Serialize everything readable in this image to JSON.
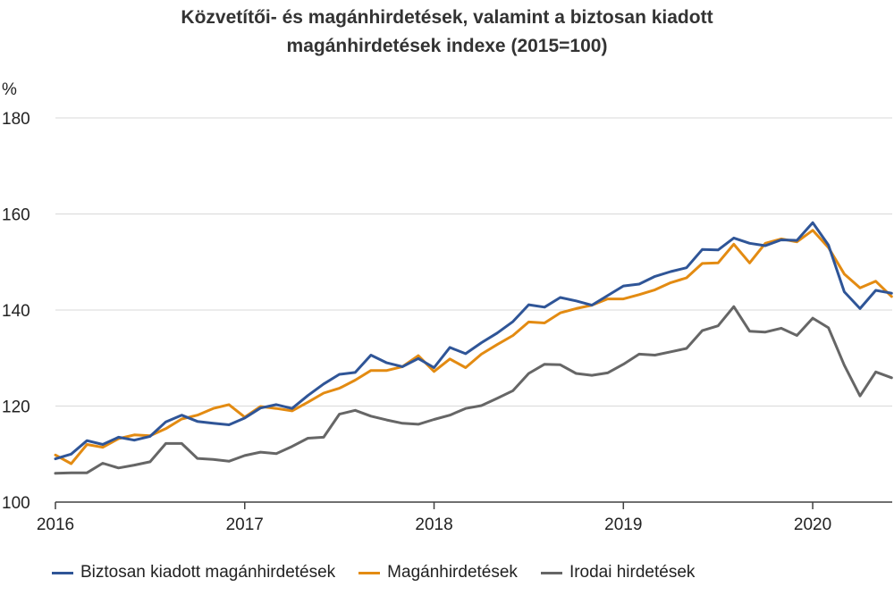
{
  "chart_data": {
    "type": "line",
    "title": [
      "Közvetítői- és magánhirdetések, valamint a biztosan kiadott",
      "magánhirdetések indexe (2015=100)"
    ],
    "ylabel": "%",
    "ylim": [
      100,
      180
    ],
    "yticks": [
      100,
      120,
      140,
      160,
      180
    ],
    "xlim": [
      2016.0,
      2020.42
    ],
    "xticks": [
      2016,
      2017,
      2018,
      2019,
      2020
    ],
    "xtick_labels": [
      "2016",
      "2017",
      "2018",
      "2019",
      "2020"
    ],
    "grid": "horizontal",
    "legend_position": "bottom",
    "months_start": "2016-01",
    "series": [
      {
        "name": "Biztosan kiadott magánhirdetések",
        "color": "#2f5597",
        "values": [
          109,
          110,
          112.8,
          112,
          113.5,
          112.9,
          113.7,
          116.7,
          118.1,
          116.8,
          116.4,
          116.1,
          117.5,
          119.6,
          120.3,
          119.5,
          122.2,
          124.6,
          126.6,
          127,
          130.6,
          129,
          128.2,
          129.9,
          128,
          132.2,
          130.9,
          133.2,
          135.2,
          137.6,
          141.1,
          140.6,
          142.6,
          141.9,
          141,
          143,
          145,
          145.4,
          147,
          148,
          148.8,
          152.6,
          152.5,
          155,
          153.9,
          153.4,
          154.6,
          154.5,
          158.2,
          153.5,
          143.8,
          140.3,
          144.1,
          143.5
        ]
      },
      {
        "name": "Magánhirdetések",
        "color": "#e38b12",
        "values": [
          109.8,
          108,
          112,
          111.4,
          113.2,
          114,
          113.8,
          115.3,
          117.3,
          118.1,
          119.5,
          120.3,
          117.7,
          119.9,
          119.5,
          119,
          120.8,
          122.7,
          123.7,
          125.4,
          127.4,
          127.4,
          128.2,
          130.5,
          127.2,
          129.8,
          128,
          130.8,
          132.8,
          134.7,
          137.5,
          137.3,
          139.4,
          140.3,
          141,
          142.3,
          142.3,
          143.2,
          144.2,
          145.7,
          146.7,
          149.7,
          149.8,
          153.7,
          149.8,
          153.9,
          154.8,
          154.2,
          156.6,
          153,
          147.5,
          144.6,
          146,
          142.8
        ]
      },
      {
        "name": "Irodai hirdetések",
        "color": "#666666",
        "values": [
          106,
          106.1,
          106.1,
          108.1,
          107.1,
          107.7,
          108.4,
          112.2,
          112.2,
          109.1,
          108.9,
          108.5,
          109.7,
          110.4,
          110.1,
          111.6,
          113.3,
          113.5,
          118.3,
          119.1,
          117.9,
          117.1,
          116.4,
          116.2,
          117.2,
          118.1,
          119.5,
          120.1,
          121.6,
          123.2,
          126.8,
          128.7,
          128.6,
          126.8,
          126.4,
          126.9,
          128.7,
          130.8,
          130.6,
          131.3,
          132,
          135.7,
          136.7,
          140.7,
          135.6,
          135.4,
          136.2,
          134.7,
          138.3,
          136.3,
          128.5,
          122.1,
          127.1,
          125.9
        ]
      }
    ]
  }
}
